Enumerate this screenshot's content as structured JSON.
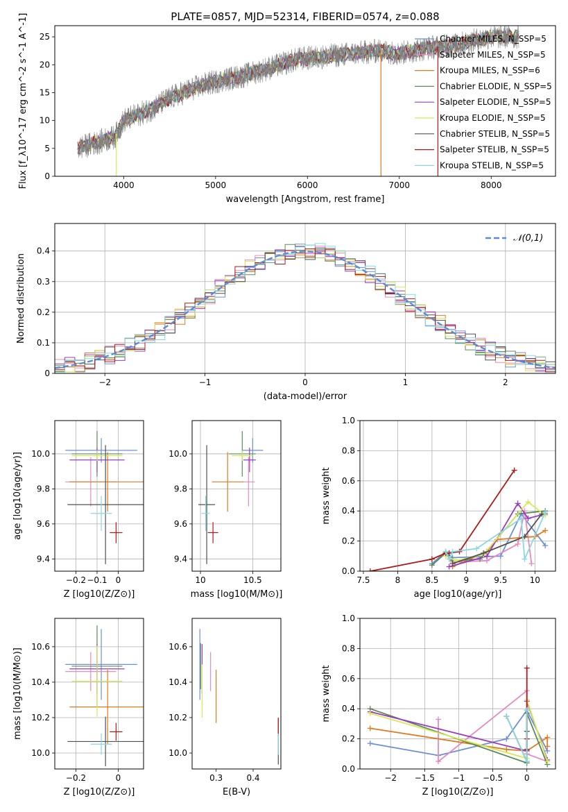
{
  "figure": {
    "title": "PLATE=0857, MJD=52314, FIBERID=0574, z=0.088"
  },
  "colors": {
    "grid": "#b0b0b0",
    "spectrum": "#808080"
  },
  "models": [
    {
      "label": "Chabrier MILES, N_SSP=5",
      "color": "#6a8fd8"
    },
    {
      "label": "Salpeter MILES, N_SSP=5",
      "color": "#e889c0"
    },
    {
      "label": "Kroupa MILES, N_SSP=6",
      "color": "#e07a1f"
    },
    {
      "label": "Chabrier ELODIE, N_SSP=5",
      "color": "#5a8a5a"
    },
    {
      "label": "Salpeter ELODIE, N_SSP=5",
      "color": "#9a3bc0"
    },
    {
      "label": "Kroupa ELODIE, N_SSP=5",
      "color": "#d8e858"
    },
    {
      "label": "Chabrier STELIB, N_SSP=5",
      "color": "#505050"
    },
    {
      "label": "Salpeter STELIB, N_SSP=5",
      "color": "#b01818"
    },
    {
      "label": "Kroupa STELIB, N_SSP=5",
      "color": "#88d8e0"
    }
  ],
  "chart_data": [
    {
      "id": "spectrum",
      "type": "line",
      "xlabel": "wavelength [Angstrom, rest frame]",
      "ylabel": "Flux [f_λ10^-17 erg cm^-2 s^-1 A^-1]",
      "xlim": [
        3250,
        8700
      ],
      "ylim": [
        0,
        27
      ],
      "xticks": [
        4000,
        5000,
        6000,
        7000,
        8000
      ],
      "yticks": [
        0,
        5,
        10,
        15,
        20,
        25
      ],
      "grid": false,
      "legend": "top-right",
      "continuum": {
        "x": [
          3500,
          3900,
          4000,
          4300,
          4500,
          4800,
          5000,
          5300,
          5600,
          5900,
          6200,
          6500,
          6800,
          7000,
          7300,
          7600,
          8000,
          8400
        ],
        "y": [
          5,
          7,
          10,
          12,
          14,
          16,
          17,
          18,
          19.5,
          21,
          21.5,
          22,
          22.5,
          22,
          23,
          23.5,
          25,
          25
        ]
      }
    },
    {
      "id": "residuals",
      "type": "line",
      "xlabel": "(data-model)/error",
      "ylabel": "Normed distribution",
      "xlim": [
        -2.5,
        2.5
      ],
      "ylim": [
        0,
        0.49
      ],
      "xticks": [
        -2,
        -1,
        0,
        1,
        2
      ],
      "yticks": [
        0.0,
        0.1,
        0.2,
        0.3,
        0.4
      ],
      "grid": true,
      "legend": "top-right",
      "reference": {
        "label": "𝒩(0,1)",
        "mu": 0,
        "sigma": 1,
        "color": "#5b8bd8"
      },
      "bins": {
        "start": -2.5,
        "width": 0.1,
        "count": 50
      }
    },
    {
      "id": "age-vs-Z",
      "type": "scatter",
      "xlabel": "Z [log10(Z/Z⊙)]",
      "ylabel": "age  [log10(age/yr)]",
      "xlim": [
        -0.3,
        0.12
      ],
      "ylim": [
        9.33,
        10.19
      ],
      "xticks": [
        -0.2,
        -0.1,
        0.0
      ],
      "yticks": [
        9.4,
        9.6,
        9.8,
        10.0
      ],
      "grid": true,
      "points": [
        {
          "x": -0.08,
          "xerr": 0.17,
          "y": 10.02,
          "yerr": 0.07
        },
        {
          "x": -0.13,
          "xerr": 0.12,
          "y": 9.84,
          "yerr": 0.14
        },
        {
          "x": -0.05,
          "xerr": 0.18,
          "y": 9.84,
          "yerr": 0.17
        },
        {
          "x": -0.1,
          "xerr": 0.12,
          "y": 10.0,
          "yerr": 0.13
        },
        {
          "x": -0.1,
          "xerr": 0.13,
          "y": 9.965,
          "yerr": 0.07
        },
        {
          "x": -0.1,
          "xerr": 0.12,
          "y": 9.99,
          "yerr": 0.03
        },
        {
          "x": -0.06,
          "xerr": 0.18,
          "y": 9.71,
          "yerr": 0.34
        },
        {
          "x": -0.01,
          "xerr": 0.03,
          "y": 9.55,
          "yerr": 0.06
        },
        {
          "x": -0.08,
          "xerr": 0.05,
          "y": 9.66,
          "yerr": 0.1
        }
      ]
    },
    {
      "id": "age-vs-mass",
      "type": "scatter",
      "xlabel": "mass [log10(M/M⊙)]",
      "ylabel": "",
      "xlim": [
        9.92,
        10.77
      ],
      "ylim": [
        9.33,
        10.19
      ],
      "xticks": [
        10.0,
        10.5
      ],
      "yticks": [
        9.4,
        9.6,
        9.8,
        10.0
      ],
      "grid": true,
      "points": [
        {
          "x": 10.5,
          "xerr": 0.1,
          "y": 10.02,
          "yerr": 0.07
        },
        {
          "x": 10.46,
          "xerr": 0.06,
          "y": 9.84,
          "yerr": 0.14
        },
        {
          "x": 10.26,
          "xerr": 0.15,
          "y": 9.84,
          "yerr": 0.17
        },
        {
          "x": 10.4,
          "xerr": 0.13,
          "y": 10.0,
          "yerr": 0.13
        },
        {
          "x": 10.47,
          "xerr": 0.06,
          "y": 9.965,
          "yerr": 0.07
        },
        {
          "x": 10.4,
          "xerr": 0.1,
          "y": 9.99,
          "yerr": 0.03
        },
        {
          "x": 10.06,
          "xerr": 0.08,
          "y": 9.71,
          "yerr": 0.34
        },
        {
          "x": 10.12,
          "xerr": 0.05,
          "y": 9.55,
          "yerr": 0.06
        },
        {
          "x": 10.05,
          "xerr": 0.04,
          "y": 9.66,
          "yerr": 0.1
        }
      ]
    },
    {
      "id": "massweight-vs-age",
      "type": "line",
      "xlabel": "age  [log10(age/yr)]",
      "ylabel": "mass weight",
      "xlim": [
        7.45,
        10.3
      ],
      "ylim": [
        0,
        1.0
      ],
      "xticks": [
        7.5,
        8.0,
        8.5,
        9.0,
        9.5,
        10.0
      ],
      "yticks": [
        0.0,
        0.2,
        0.4,
        0.6,
        0.8,
        1.0
      ],
      "grid": true,
      "series": [
        {
          "x": [
            8.5,
            8.7,
            8.8,
            9.5,
            9.8,
            10.15
          ],
          "y": [
            0.05,
            0.13,
            0.09,
            0.1,
            0.38,
            0.17
          ]
        },
        {
          "x": [
            8.7,
            8.8,
            9.3,
            9.75,
            9.85,
            9.95
          ],
          "y": [
            0.12,
            0.06,
            0.07,
            0.18,
            0.4,
            0.05
          ]
        },
        {
          "x": [
            8.8,
            9.3,
            9.45,
            10.0,
            10.15
          ],
          "y": [
            0.03,
            0.13,
            0.21,
            0.23,
            0.27
          ]
        },
        {
          "x": [
            8.5,
            8.7,
            8.8,
            9.2,
            9.75,
            10.15
          ],
          "y": [
            0.04,
            0.12,
            0.07,
            0.08,
            0.38,
            0.4
          ]
        },
        {
          "x": [
            8.75,
            9.3,
            9.75,
            9.9,
            10.15
          ],
          "y": [
            0.03,
            0.1,
            0.45,
            0.35,
            0.38
          ]
        },
        {
          "x": [
            8.7,
            8.85,
            9.25,
            9.9,
            10.15
          ],
          "y": [
            0.1,
            0.07,
            0.11,
            0.46,
            0.37
          ]
        },
        {
          "x": [
            8.8,
            9.25,
            9.85,
            10.1
          ],
          "y": [
            0.05,
            0.12,
            0.23,
            0.38
          ]
        },
        {
          "x": [
            7.6,
            8.5,
            8.7,
            8.75,
            8.9,
            9.7
          ],
          "y": [
            0.0,
            0.08,
            0.12,
            0.12,
            0.13,
            0.67
          ]
        },
        {
          "x": [
            8.7,
            8.75,
            8.8,
            9.15,
            9.8,
            9.85,
            10.15
          ],
          "y": [
            0.13,
            0.08,
            0.13,
            0.15,
            0.35,
            0.08,
            0.39
          ]
        }
      ]
    },
    {
      "id": "mass-vs-Z",
      "type": "scatter",
      "xlabel": "Z [log10(Z/Z⊙)]",
      "ylabel": "mass [log10(M/M⊙)]",
      "xlim": [
        -0.3,
        0.12
      ],
      "ylim": [
        9.91,
        10.76
      ],
      "xticks": [
        -0.2,
        0.0
      ],
      "yticks": [
        10.0,
        10.2,
        10.4,
        10.6
      ],
      "grid": true,
      "points": [
        {
          "x": -0.08,
          "xerr": 0.17,
          "y": 10.5,
          "yerr": 0.2
        },
        {
          "x": -0.13,
          "xerr": 0.12,
          "y": 10.46,
          "yerr": 0.11
        },
        {
          "x": -0.05,
          "xerr": 0.18,
          "y": 10.26,
          "yerr": 0.21
        },
        {
          "x": -0.1,
          "xerr": 0.12,
          "y": 10.49,
          "yerr": 0.23
        },
        {
          "x": -0.1,
          "xerr": 0.13,
          "y": 10.475,
          "yerr": 0.14
        },
        {
          "x": -0.1,
          "xerr": 0.12,
          "y": 10.405,
          "yerr": 0.2
        },
        {
          "x": -0.06,
          "xerr": 0.18,
          "y": 10.065,
          "yerr": 0.14
        },
        {
          "x": -0.01,
          "xerr": 0.03,
          "y": 10.12,
          "yerr": 0.05
        },
        {
          "x": -0.08,
          "xerr": 0.05,
          "y": 10.05,
          "yerr": 0.06
        }
      ]
    },
    {
      "id": "mass-vs-ebv",
      "type": "scatter",
      "xlabel": "E(B-V)",
      "ylabel": "",
      "xlim": [
        0.235,
        0.475
      ],
      "ylim": [
        9.91,
        10.76
      ],
      "xticks": [
        0.3,
        0.4
      ],
      "yticks": [
        10.0,
        10.2,
        10.4,
        10.6
      ],
      "grid": false,
      "points": [
        {
          "x": 0.256,
          "xerr": 0,
          "y": 10.5,
          "yerr": 0.2
        },
        {
          "x": 0.285,
          "xerr": 0,
          "y": 10.46,
          "yerr": 0.11
        },
        {
          "x": 0.3,
          "xerr": 0,
          "y": 10.32,
          "yerr": 0.15
        },
        {
          "x": 0.258,
          "xerr": 0,
          "y": 10.49,
          "yerr": 0.13
        },
        {
          "x": 0.262,
          "xerr": 0,
          "y": 10.475,
          "yerr": 0.14
        },
        {
          "x": 0.262,
          "xerr": 0,
          "y": 10.35,
          "yerr": 0.15
        },
        {
          "x": 0.468,
          "xerr": 0,
          "y": 10.065,
          "yerr": 0.13
        },
        {
          "x": 0.468,
          "xerr": 0,
          "y": 10.15,
          "yerr": 0.05
        },
        {
          "x": 0.468,
          "xerr": 0,
          "y": 10.05,
          "yerr": 0.06
        }
      ]
    },
    {
      "id": "massweight-vs-Z",
      "type": "line",
      "xlabel": "Z [log10(Z/Z⊙)]",
      "ylabel": "mass weight",
      "xlim": [
        -2.45,
        0.42
      ],
      "ylim": [
        0,
        1.0
      ],
      "xticks": [
        -2.0,
        -1.5,
        -1.0,
        -0.5,
        0.0
      ],
      "yticks": [
        0.0,
        0.2,
        0.4,
        0.6,
        0.8,
        1.0
      ],
      "grid": true,
      "series": [
        {
          "x": [
            -2.3,
            -1.3,
            -0.3,
            0.0,
            0.3
          ],
          "y": [
            0.17,
            0.09,
            0.2,
            0.39,
            0.12
          ]
        },
        {
          "x": [
            -1.3,
            -1.3,
            0.0,
            0.0,
            0.3
          ],
          "y": [
            0.33,
            0.05,
            0.52,
            0.1,
            0.05
          ]
        },
        {
          "x": [
            -2.3,
            -0.3,
            0.0,
            0.3,
            0.3
          ],
          "y": [
            0.27,
            0.13,
            0.12,
            0.21,
            0.15
          ]
        },
        {
          "x": [
            -2.3,
            0.0,
            0.0,
            0.3
          ],
          "y": [
            0.4,
            0.04,
            0.37,
            0.03
          ]
        },
        {
          "x": [
            -2.3,
            0.0,
            0.0,
            0.3
          ],
          "y": [
            0.38,
            0.12,
            0.45,
            0.06
          ]
        },
        {
          "x": [
            -2.3,
            0.0,
            0.0,
            0.3
          ],
          "y": [
            0.37,
            0.07,
            0.46,
            0.05
          ]
        },
        {
          "x": [
            -0.3,
            0.0,
            0.0
          ],
          "y": [
            0.35,
            0.05,
            0.25
          ]
        },
        {
          "x": [
            0.0,
            0.0,
            0.0
          ],
          "y": [
            0.67,
            0.2,
            0.13
          ]
        },
        {
          "x": [
            -0.3,
            0.0,
            0.0
          ],
          "y": [
            0.35,
            0.05,
            0.39
          ]
        }
      ]
    }
  ]
}
